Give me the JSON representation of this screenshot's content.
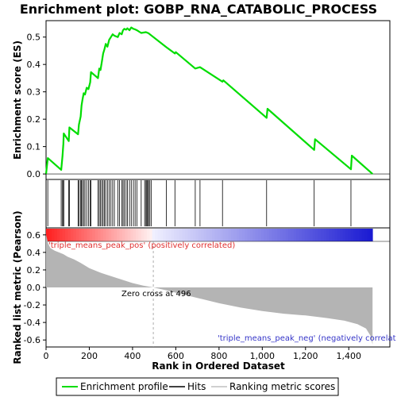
{
  "chart_data": {
    "type": "line",
    "title": "Enrichment plot: GOBP_RNA_CATABOLIC_PROCESS",
    "xlabel": "Rank in Ordered Dataset",
    "ylabel_top": "Enrichment score (ES)",
    "ylabel_bottom": "Ranked list metric (Pearson)",
    "x_max": 1510,
    "xlim": [
      0,
      1590
    ],
    "x_ticks": [
      "0",
      "200",
      "400",
      "600",
      "800",
      "1,000",
      "1,200",
      "1,400"
    ],
    "x_tick_values": [
      0,
      200,
      400,
      600,
      800,
      1000,
      1200,
      1400
    ],
    "es_ylim": [
      -0.02,
      0.56
    ],
    "es_y_ticks": [
      "0.0",
      "0.1",
      "0.2",
      "0.3",
      "0.4",
      "0.5"
    ],
    "es_y_tick_values": [
      0.0,
      0.1,
      0.2,
      0.3,
      0.4,
      0.5
    ],
    "metric_ylim": [
      -0.68,
      0.68
    ],
    "metric_y_ticks": [
      "-0.6",
      "-0.4",
      "-0.2",
      "0.0",
      "0.2",
      "0.4",
      "0.6"
    ],
    "metric_y_tick_values": [
      -0.6,
      -0.4,
      -0.2,
      0.0,
      0.2,
      0.4,
      0.6
    ],
    "es_profile": {
      "x": [
        0,
        8,
        70,
        76,
        80,
        82,
        105,
        108,
        148,
        152,
        160,
        164,
        168,
        174,
        180,
        188,
        196,
        204,
        208,
        240,
        246,
        252,
        258,
        264,
        270,
        276,
        284,
        292,
        300,
        308,
        316,
        332,
        340,
        350,
        356,
        362,
        370,
        376,
        386,
        394,
        404,
        412,
        420,
        440,
        462,
        474,
        480,
        556,
        596,
        600,
        690,
        712,
        716,
        816,
        820,
        1020,
        1024,
        1240,
        1244,
        1410,
        1414,
        1510
      ],
      "y": [
        0.0,
        0.058,
        0.015,
        0.065,
        0.11,
        0.148,
        0.12,
        0.17,
        0.145,
        0.18,
        0.21,
        0.25,
        0.27,
        0.295,
        0.29,
        0.315,
        0.31,
        0.335,
        0.372,
        0.35,
        0.385,
        0.38,
        0.41,
        0.44,
        0.455,
        0.475,
        0.465,
        0.49,
        0.5,
        0.51,
        0.505,
        0.5,
        0.515,
        0.51,
        0.525,
        0.53,
        0.527,
        0.532,
        0.525,
        0.535,
        0.53,
        0.528,
        0.525,
        0.515,
        0.518,
        0.514,
        0.51,
        0.463,
        0.44,
        0.445,
        0.385,
        0.39,
        0.388,
        0.337,
        0.342,
        0.205,
        0.238,
        0.088,
        0.127,
        0.017,
        0.067,
        0.0
      ]
    },
    "hits": [
      8,
      70,
      76,
      80,
      82,
      105,
      108,
      148,
      152,
      160,
      164,
      168,
      174,
      180,
      188,
      196,
      204,
      208,
      240,
      246,
      252,
      258,
      264,
      270,
      276,
      284,
      292,
      300,
      308,
      316,
      332,
      340,
      350,
      356,
      362,
      370,
      376,
      386,
      394,
      404,
      412,
      420,
      440,
      456,
      462,
      466,
      470,
      474,
      480,
      486,
      556,
      596,
      690,
      712,
      816,
      1020,
      1240,
      1410
    ],
    "metric_profile": {
      "x": [
        0,
        5,
        10,
        20,
        40,
        60,
        80,
        100,
        130,
        160,
        200,
        250,
        300,
        350,
        400,
        450,
        496,
        550,
        600,
        700,
        800,
        900,
        1000,
        1100,
        1200,
        1300,
        1380,
        1440,
        1480,
        1500,
        1510
      ],
      "y": [
        0.6,
        0.55,
        0.5,
        0.45,
        0.42,
        0.4,
        0.38,
        0.35,
        0.32,
        0.28,
        0.22,
        0.17,
        0.13,
        0.09,
        0.05,
        0.02,
        0.0,
        -0.03,
        -0.06,
        -0.12,
        -0.18,
        -0.23,
        -0.27,
        -0.3,
        -0.32,
        -0.35,
        -0.38,
        -0.42,
        -0.47,
        -0.55,
        -0.65
      ]
    },
    "zero_cross_label": "Zero cross at 496",
    "zero_cross_x": 496,
    "pos_label": "'triple_means_peak_pos' (positively correlated)",
    "neg_label": "'triple_means_peak_neg' (negatively correlat",
    "legend": [
      {
        "label": "Enrichment profile",
        "color": "#00dd00"
      },
      {
        "label": "Hits",
        "color": "#000000"
      },
      {
        "label": "Ranking metric scores",
        "color": "#c0c0c0"
      }
    ],
    "colors": {
      "profile": "#00dd00",
      "hit": "#000000",
      "metric_fill": "#b4b4b4",
      "pos_text": "#e03030",
      "neg_text": "#3535c8"
    },
    "grid": false
  }
}
